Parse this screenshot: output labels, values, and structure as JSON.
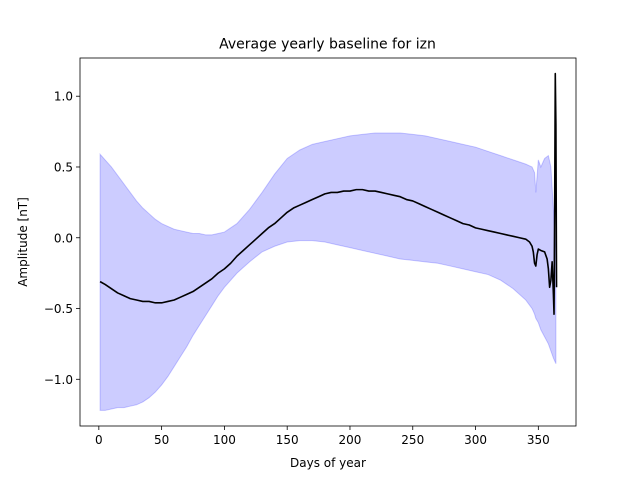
{
  "chart_data": {
    "type": "line",
    "title": "Average yearly baseline for izn",
    "xlabel": "Days of year",
    "ylabel": "Amplitude [nT]",
    "xlim": [
      -15,
      380
    ],
    "ylim": [
      -1.33,
      1.27
    ],
    "grid": false,
    "xticks": [
      0,
      50,
      100,
      150,
      200,
      250,
      300,
      350
    ],
    "xtick_labels": [
      "0",
      "50",
      "100",
      "150",
      "200",
      "250",
      "300",
      "350"
    ],
    "yticks": [
      -1.0,
      -0.5,
      0.0,
      0.5,
      1.0
    ],
    "ytick_labels": [
      "−1.0",
      "−0.5",
      "0.0",
      "0.5",
      "1.0"
    ],
    "colors": {
      "mean_line": "#000000",
      "band": "#0000ff"
    },
    "series": [
      {
        "kind": "line",
        "x": [
          1,
          5,
          10,
          15,
          20,
          25,
          30,
          35,
          40,
          45,
          50,
          55,
          60,
          65,
          70,
          75,
          80,
          85,
          90,
          95,
          100,
          105,
          110,
          115,
          120,
          125,
          130,
          135,
          140,
          145,
          150,
          155,
          160,
          165,
          170,
          175,
          180,
          185,
          190,
          195,
          200,
          205,
          210,
          215,
          220,
          225,
          230,
          235,
          240,
          245,
          250,
          255,
          260,
          265,
          270,
          275,
          280,
          285,
          290,
          295,
          300,
          305,
          310,
          315,
          320,
          325,
          330,
          335,
          340,
          343,
          345,
          346,
          347,
          348,
          349,
          350,
          352,
          355,
          357,
          358,
          359,
          360,
          361,
          362,
          362.5,
          363,
          363.5,
          364,
          364.5
        ],
        "y": [
          -0.31,
          -0.33,
          -0.36,
          -0.39,
          -0.41,
          -0.43,
          -0.44,
          -0.45,
          -0.45,
          -0.46,
          -0.46,
          -0.45,
          -0.44,
          -0.42,
          -0.4,
          -0.38,
          -0.35,
          -0.32,
          -0.29,
          -0.25,
          -0.22,
          -0.18,
          -0.13,
          -0.09,
          -0.05,
          -0.01,
          0.03,
          0.07,
          0.1,
          0.14,
          0.18,
          0.21,
          0.23,
          0.25,
          0.27,
          0.29,
          0.31,
          0.32,
          0.32,
          0.33,
          0.33,
          0.34,
          0.34,
          0.33,
          0.33,
          0.32,
          0.31,
          0.3,
          0.29,
          0.27,
          0.26,
          0.24,
          0.22,
          0.2,
          0.18,
          0.16,
          0.14,
          0.12,
          0.1,
          0.09,
          0.07,
          0.06,
          0.05,
          0.04,
          0.03,
          0.02,
          0.01,
          0.0,
          -0.01,
          -0.03,
          -0.06,
          -0.1,
          -0.18,
          -0.2,
          -0.12,
          -0.08,
          -0.09,
          -0.1,
          -0.15,
          -0.22,
          -0.35,
          -0.3,
          -0.17,
          -0.4,
          -0.54,
          0.2,
          1.16,
          0.8,
          -0.35
        ]
      },
      {
        "kind": "band",
        "x": [
          1,
          5,
          10,
          15,
          20,
          25,
          30,
          35,
          40,
          45,
          50,
          55,
          60,
          65,
          70,
          75,
          80,
          85,
          90,
          95,
          100,
          110,
          120,
          130,
          140,
          150,
          160,
          170,
          180,
          190,
          200,
          210,
          220,
          230,
          240,
          250,
          260,
          270,
          280,
          290,
          300,
          310,
          320,
          330,
          340,
          345,
          346,
          347,
          348,
          350,
          352,
          355,
          358,
          360,
          362,
          364
        ],
        "upper": [
          0.59,
          0.55,
          0.5,
          0.44,
          0.38,
          0.32,
          0.26,
          0.21,
          0.17,
          0.13,
          0.1,
          0.08,
          0.06,
          0.05,
          0.04,
          0.03,
          0.03,
          0.02,
          0.02,
          0.03,
          0.04,
          0.1,
          0.2,
          0.32,
          0.45,
          0.56,
          0.62,
          0.66,
          0.68,
          0.7,
          0.72,
          0.73,
          0.74,
          0.74,
          0.74,
          0.73,
          0.72,
          0.7,
          0.68,
          0.66,
          0.64,
          0.61,
          0.58,
          0.55,
          0.52,
          0.5,
          0.48,
          0.46,
          0.32,
          0.55,
          0.5,
          0.56,
          0.58,
          0.5,
          0.2,
          -0.1
        ],
        "lower": [
          -1.22,
          -1.22,
          -1.21,
          -1.2,
          -1.2,
          -1.19,
          -1.18,
          -1.16,
          -1.13,
          -1.09,
          -1.04,
          -0.98,
          -0.91,
          -0.84,
          -0.77,
          -0.69,
          -0.62,
          -0.55,
          -0.48,
          -0.41,
          -0.35,
          -0.25,
          -0.17,
          -0.1,
          -0.06,
          -0.03,
          -0.02,
          -0.02,
          -0.03,
          -0.05,
          -0.07,
          -0.09,
          -0.11,
          -0.13,
          -0.15,
          -0.16,
          -0.17,
          -0.18,
          -0.2,
          -0.22,
          -0.24,
          -0.26,
          -0.3,
          -0.36,
          -0.44,
          -0.5,
          -0.52,
          -0.54,
          -0.57,
          -0.6,
          -0.65,
          -0.7,
          -0.75,
          -0.8,
          -0.85,
          -0.89
        ]
      }
    ]
  }
}
